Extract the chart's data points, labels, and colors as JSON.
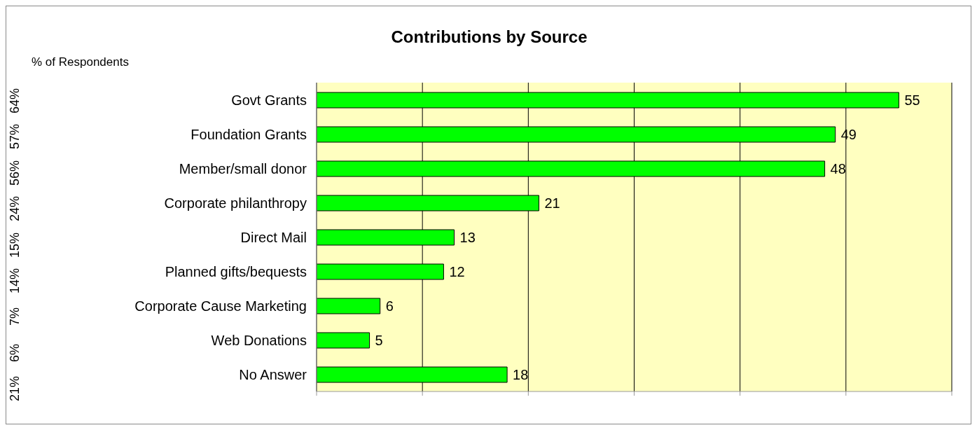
{
  "chart_data": {
    "type": "bar",
    "orientation": "horizontal",
    "title": "Contributions by Source",
    "ylabel": "% of Respondents",
    "categories": [
      "Govt Grants",
      "Foundation Grants",
      "Member/small donor",
      "Corporate philanthropy",
      "Direct Mail",
      "Planned gifts/bequests",
      "Corporate Cause Marketing",
      "Web Donations",
      "No Answer"
    ],
    "values": [
      55,
      49,
      48,
      21,
      13,
      12,
      6,
      5,
      18
    ],
    "color": "#00ff00",
    "xlim": [
      0,
      60
    ],
    "xticks": [
      {
        "value": 0,
        "label": null
      },
      {
        "value": 10,
        "label": null
      },
      {
        "value": 20,
        "label": null
      },
      {
        "value": 30,
        "label": null
      },
      {
        "value": 40,
        "label": null
      },
      {
        "value": 50,
        "label": null
      },
      {
        "value": 60,
        "label": null
      }
    ],
    "tick_labels": "y",
    "grid": "x",
    "data_labels": true,
    "annotations": [
      "64%",
      "57%",
      "56%",
      "24%",
      "15%",
      "14%",
      "7%",
      "6%",
      "21%"
    ]
  }
}
